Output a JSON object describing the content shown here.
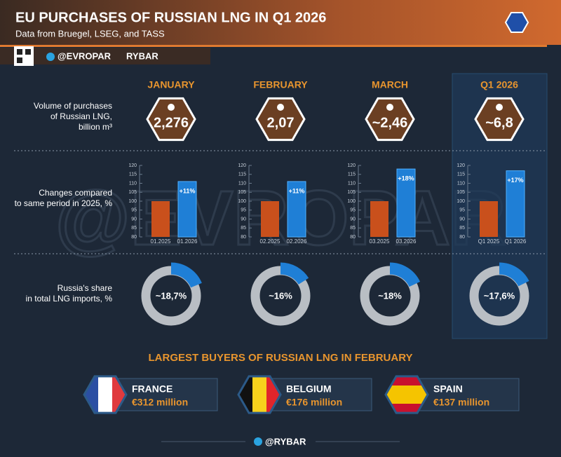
{
  "header": {
    "title": "EU PURCHASES OF RUSSIAN LNG IN Q1 2026",
    "subtitle": "Data from Bruegel, LSEG, and TASS",
    "handle": "@EVROPAR",
    "brand": "RYBAR"
  },
  "row_labels": [
    [
      "Volume of purchases",
      "of Russian LNG,",
      "billion m³"
    ],
    [
      "Changes compared",
      "to same period in 2025, %"
    ],
    [
      "Russia's share",
      "in total LNG imports, %"
    ]
  ],
  "bar_axis": {
    "ylim": [
      80,
      120
    ],
    "yticks": [
      80,
      85,
      90,
      95,
      100,
      105,
      110,
      115,
      120
    ]
  },
  "columns": [
    {
      "title": "JANUARY",
      "volume": 2.276,
      "volume_label": "2,276",
      "bars": {
        "categories": [
          "01.2025",
          "01.2026"
        ],
        "values": [
          100,
          111
        ],
        "change_label": "+11%"
      },
      "share": 18.7,
      "share_label": "~18,7%"
    },
    {
      "title": "FEBRUARY",
      "volume": 2.07,
      "volume_label": "2,07",
      "bars": {
        "categories": [
          "02.2025",
          "02.2026"
        ],
        "values": [
          100,
          111
        ],
        "change_label": "+11%"
      },
      "share": 16,
      "share_label": "~16%"
    },
    {
      "title": "MARCH",
      "volume": 2.46,
      "volume_label": "~2,46",
      "bars": {
        "categories": [
          "03.2025",
          "03.2026"
        ],
        "values": [
          100,
          118
        ],
        "change_label": "+18%"
      },
      "share": 18,
      "share_label": "~18%"
    },
    {
      "title": "Q1 2026",
      "volume": 6.8,
      "volume_label": "~6,8",
      "bars": {
        "categories": [
          "Q1 2025",
          "Q1 2026"
        ],
        "values": [
          100,
          117
        ],
        "change_label": "+17%"
      },
      "share": 17.6,
      "share_label": "~17,6%"
    }
  ],
  "buyers_title": "LARGEST BUYERS OF RUSSIAN LNG IN FEBRUARY",
  "buyers": [
    {
      "country": "FRANCE",
      "amount": 312,
      "amount_label": "€312 million"
    },
    {
      "country": "BELGIUM",
      "amount": 176,
      "amount_label": "€176 million"
    },
    {
      "country": "SPAIN",
      "amount": 137,
      "amount_label": "€137 million"
    }
  ],
  "footer": "@RYBAR"
}
